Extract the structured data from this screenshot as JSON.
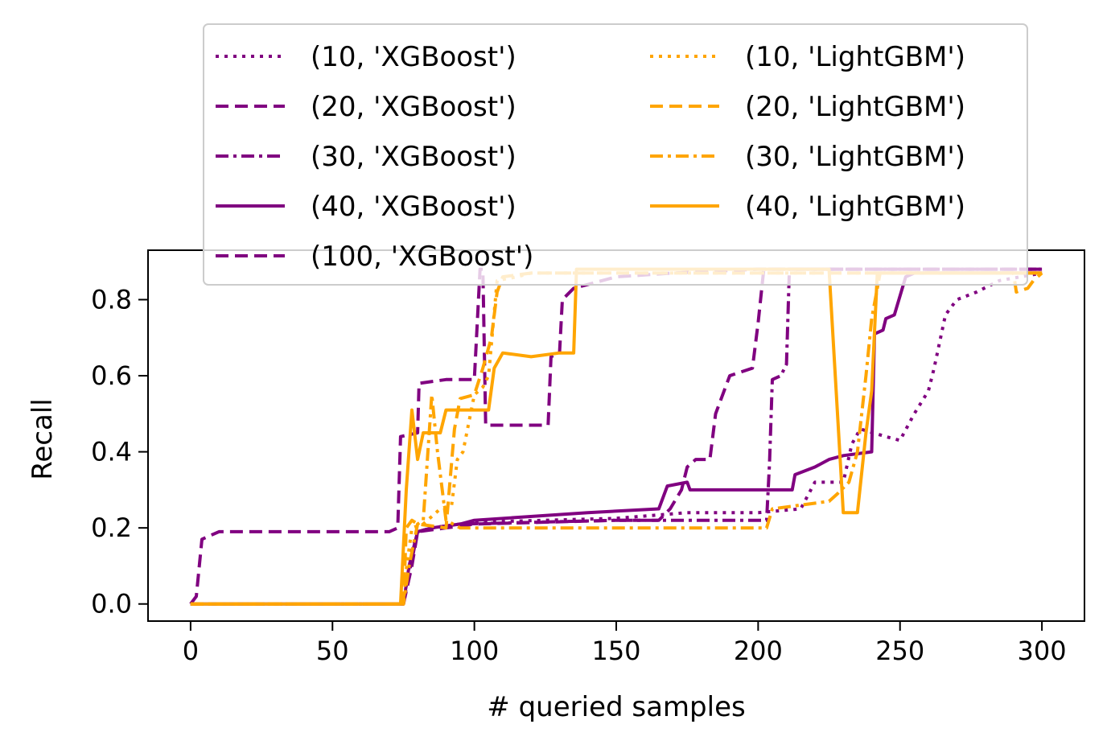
{
  "chart_data": {
    "type": "line",
    "title": "",
    "xlabel": "# queried samples",
    "ylabel": "Recall",
    "xlim": [
      -15,
      315
    ],
    "ylim": [
      -0.045,
      0.93
    ],
    "xticks": [
      0,
      50,
      100,
      150,
      200,
      250,
      300
    ],
    "xtick_labels": [
      "0",
      "50",
      "100",
      "150",
      "200",
      "250",
      "300"
    ],
    "yticks": [
      0.0,
      0.2,
      0.4,
      0.6,
      0.8
    ],
    "ytick_labels": [
      "0.0",
      "0.2",
      "0.4",
      "0.6",
      "0.8"
    ],
    "grid": false,
    "legend_position": "top, two columns, overlapping the plot",
    "series": [
      {
        "name": "(10, 'XGBoost')",
        "color": "#800080",
        "dash": "dotted",
        "points": [
          [
            0,
            0
          ],
          [
            75,
            0
          ],
          [
            76,
            0.05
          ],
          [
            78,
            0.14
          ],
          [
            80,
            0.19
          ],
          [
            85,
            0.2
          ],
          [
            95,
            0.21
          ],
          [
            100,
            0.215
          ],
          [
            150,
            0.225
          ],
          [
            175,
            0.24
          ],
          [
            200,
            0.24
          ],
          [
            215,
            0.25
          ],
          [
            220,
            0.32
          ],
          [
            230,
            0.32
          ],
          [
            233,
            0.42
          ],
          [
            236,
            0.46
          ],
          [
            245,
            0.44
          ],
          [
            250,
            0.43
          ],
          [
            255,
            0.5
          ],
          [
            260,
            0.56
          ],
          [
            262,
            0.62
          ],
          [
            266,
            0.76
          ],
          [
            270,
            0.8
          ],
          [
            277,
            0.82
          ],
          [
            285,
            0.85
          ],
          [
            300,
            0.87
          ]
        ]
      },
      {
        "name": "(20, 'XGBoost')",
        "color": "#800080",
        "dash": "dashed",
        "points": [
          [
            0,
            0
          ],
          [
            2,
            0.02
          ],
          [
            4,
            0.17
          ],
          [
            10,
            0.19
          ],
          [
            30,
            0.19
          ],
          [
            70,
            0.19
          ],
          [
            73,
            0.2
          ],
          [
            74,
            0.44
          ],
          [
            80,
            0.45
          ],
          [
            80.5,
            0.58
          ],
          [
            90,
            0.59
          ],
          [
            100,
            0.59
          ],
          [
            102,
            0.88
          ],
          [
            103,
            0.88
          ],
          [
            104,
            0.47
          ],
          [
            112,
            0.47
          ],
          [
            126,
            0.47
          ],
          [
            127,
            0.65
          ],
          [
            130,
            0.66
          ],
          [
            131,
            0.8
          ],
          [
            135,
            0.83
          ],
          [
            150,
            0.86
          ],
          [
            170,
            0.87
          ],
          [
            200,
            0.88
          ],
          [
            300,
            0.88
          ]
        ]
      },
      {
        "name": "(30, 'XGBoost')",
        "color": "#800080",
        "dash": "dashdot",
        "points": [
          [
            0,
            0
          ],
          [
            75,
            0
          ],
          [
            77,
            0.08
          ],
          [
            80,
            0.19
          ],
          [
            85,
            0.2
          ],
          [
            95,
            0.21
          ],
          [
            150,
            0.22
          ],
          [
            175,
            0.22
          ],
          [
            203,
            0.22
          ],
          [
            204,
            0.37
          ],
          [
            205,
            0.59
          ],
          [
            208,
            0.6
          ],
          [
            210,
            0.63
          ],
          [
            211,
            0.88
          ],
          [
            220,
            0.88
          ],
          [
            300,
            0.88
          ]
        ]
      },
      {
        "name": "(40, 'XGBoost')",
        "color": "#800080",
        "dash": "solid",
        "points": [
          [
            0,
            0
          ],
          [
            75,
            0
          ],
          [
            77,
            0.1
          ],
          [
            80,
            0.19
          ],
          [
            85,
            0.2
          ],
          [
            95,
            0.21
          ],
          [
            100,
            0.22
          ],
          [
            140,
            0.24
          ],
          [
            165,
            0.25
          ],
          [
            168,
            0.31
          ],
          [
            175,
            0.32
          ],
          [
            176,
            0.3
          ],
          [
            190,
            0.3
          ],
          [
            205,
            0.3
          ],
          [
            212,
            0.3
          ],
          [
            213,
            0.34
          ],
          [
            220,
            0.36
          ],
          [
            225,
            0.38
          ],
          [
            230,
            0.39
          ],
          [
            240,
            0.4
          ],
          [
            241,
            0.71
          ],
          [
            244,
            0.72
          ],
          [
            245,
            0.75
          ],
          [
            248,
            0.76
          ],
          [
            252,
            0.86
          ],
          [
            255,
            0.87
          ],
          [
            300,
            0.87
          ]
        ]
      },
      {
        "name": "(100, 'XGBoost')",
        "color": "#800080",
        "dash": "dashed",
        "points": [
          [
            0,
            0
          ],
          [
            75,
            0
          ],
          [
            78,
            0.1
          ],
          [
            80,
            0.19
          ],
          [
            90,
            0.2
          ],
          [
            100,
            0.21
          ],
          [
            150,
            0.22
          ],
          [
            165,
            0.22
          ],
          [
            169,
            0.25
          ],
          [
            173,
            0.3
          ],
          [
            175,
            0.36
          ],
          [
            178,
            0.38
          ],
          [
            183,
            0.38
          ],
          [
            185,
            0.5
          ],
          [
            190,
            0.6
          ],
          [
            198,
            0.62
          ],
          [
            200,
            0.74
          ],
          [
            202,
            0.88
          ],
          [
            220,
            0.88
          ],
          [
            300,
            0.88
          ]
        ]
      },
      {
        "name": "(10, 'LightGBM')",
        "color": "#FFA500",
        "dash": "dotted",
        "points": [
          [
            0,
            0
          ],
          [
            75,
            0
          ],
          [
            76,
            0.09
          ],
          [
            78,
            0.2
          ],
          [
            82,
            0.21
          ],
          [
            88,
            0.25
          ],
          [
            92,
            0.26
          ],
          [
            94,
            0.38
          ],
          [
            96,
            0.4
          ],
          [
            100,
            0.55
          ],
          [
            103,
            0.57
          ],
          [
            105,
            0.6
          ],
          [
            108,
            0.85
          ],
          [
            115,
            0.86
          ],
          [
            120,
            0.87
          ],
          [
            150,
            0.87
          ],
          [
            220,
            0.87
          ],
          [
            270,
            0.87
          ],
          [
            300,
            0.87
          ]
        ]
      },
      {
        "name": "(20, 'LightGBM')",
        "color": "#FFA500",
        "dash": "dashed",
        "points": [
          [
            0,
            0
          ],
          [
            75,
            0
          ],
          [
            76,
            0.2
          ],
          [
            78,
            0.22
          ],
          [
            80,
            0.21
          ],
          [
            90,
            0.2
          ],
          [
            93,
            0.46
          ],
          [
            95,
            0.54
          ],
          [
            100,
            0.55
          ],
          [
            103,
            0.62
          ],
          [
            106,
            0.7
          ],
          [
            108,
            0.82
          ],
          [
            110,
            0.86
          ],
          [
            120,
            0.87
          ],
          [
            200,
            0.87
          ],
          [
            230,
            0.87
          ],
          [
            290,
            0.87
          ],
          [
            291,
            0.82
          ],
          [
            295,
            0.83
          ],
          [
            297,
            0.85
          ],
          [
            300,
            0.87
          ]
        ]
      },
      {
        "name": "(30, 'LightGBM')",
        "color": "#FFA500",
        "dash": "dashdot",
        "points": [
          [
            0,
            0
          ],
          [
            75,
            0
          ],
          [
            77,
            0.1
          ],
          [
            80,
            0.21
          ],
          [
            82,
            0.22
          ],
          [
            85,
            0.55
          ],
          [
            87,
            0.4
          ],
          [
            90,
            0.22
          ],
          [
            95,
            0.2
          ],
          [
            100,
            0.2
          ],
          [
            150,
            0.2
          ],
          [
            200,
            0.2
          ],
          [
            203,
            0.2
          ],
          [
            205,
            0.25
          ],
          [
            215,
            0.26
          ],
          [
            225,
            0.27
          ],
          [
            228,
            0.29
          ],
          [
            232,
            0.32
          ],
          [
            235,
            0.4
          ],
          [
            238,
            0.6
          ],
          [
            240,
            0.75
          ],
          [
            243,
            0.87
          ],
          [
            300,
            0.87
          ]
        ]
      },
      {
        "name": "(40, 'LightGBM')",
        "color": "#FFA500",
        "dash": "solid",
        "points": [
          [
            0,
            0
          ],
          [
            74,
            0
          ],
          [
            76,
            0.3
          ],
          [
            78,
            0.51
          ],
          [
            80,
            0.38
          ],
          [
            82,
            0.45
          ],
          [
            88,
            0.45
          ],
          [
            90,
            0.51
          ],
          [
            100,
            0.51
          ],
          [
            105,
            0.51
          ],
          [
            107,
            0.62
          ],
          [
            110,
            0.66
          ],
          [
            120,
            0.65
          ],
          [
            130,
            0.66
          ],
          [
            135,
            0.66
          ],
          [
            136,
            0.88
          ],
          [
            150,
            0.88
          ],
          [
            200,
            0.88
          ],
          [
            225,
            0.88
          ],
          [
            230,
            0.24
          ],
          [
            235,
            0.24
          ],
          [
            238,
            0.45
          ],
          [
            240,
            0.56
          ],
          [
            242,
            0.87
          ],
          [
            300,
            0.87
          ]
        ]
      }
    ]
  }
}
